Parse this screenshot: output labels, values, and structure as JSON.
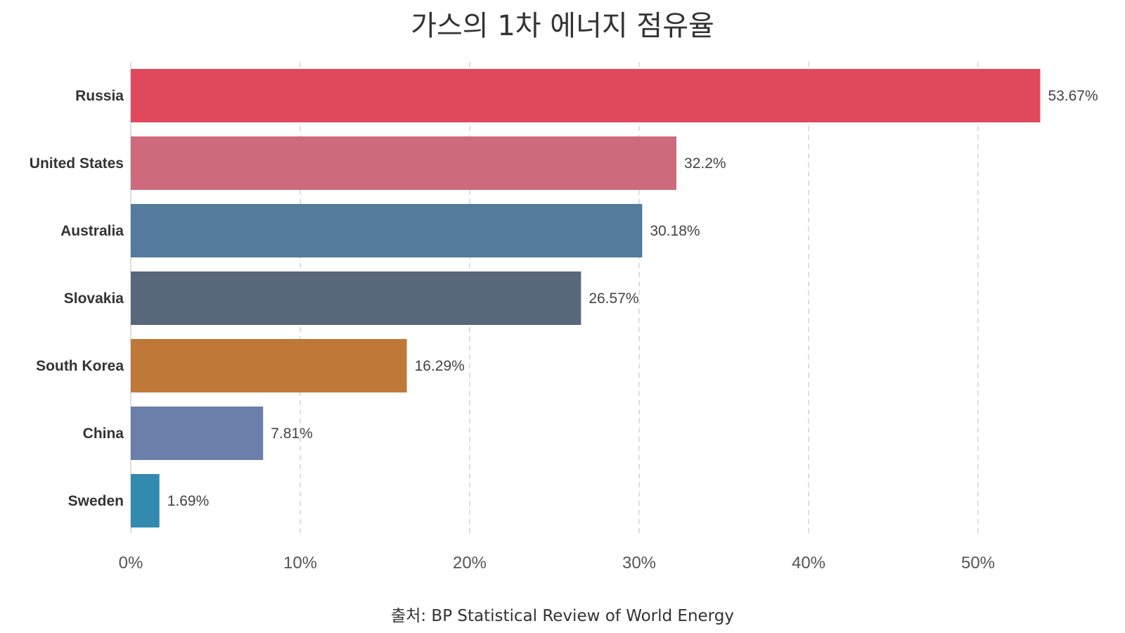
{
  "chart_data": {
    "type": "bar",
    "orientation": "horizontal",
    "title": "가스의 1차 에너지 점유율",
    "source": "출처: BP Statistical Review of World Energy",
    "categories": [
      "Russia",
      "United States",
      "Australia",
      "Slovakia",
      "South Korea",
      "China",
      "Sweden"
    ],
    "values": [
      53.67,
      32.2,
      30.18,
      26.57,
      16.29,
      7.81,
      1.69
    ],
    "value_labels": [
      "53.67%",
      "32.2%",
      "30.18%",
      "26.57%",
      "16.29%",
      "7.81%",
      "1.69%"
    ],
    "colors": [
      "#e0485b",
      "#cd6b7c",
      "#537b9c",
      "#59677c",
      "#bf7838",
      "#6a7fa9",
      "#338aaf"
    ],
    "x_ticks": [
      0,
      10,
      20,
      30,
      40,
      50
    ],
    "x_tick_labels": [
      "0%",
      "10%",
      "20%",
      "30%",
      "40%",
      "50%"
    ],
    "xlim": [
      0,
      58
    ],
    "xlabel": "",
    "ylabel": "",
    "grid": "vertical dashed",
    "legend": "none"
  }
}
